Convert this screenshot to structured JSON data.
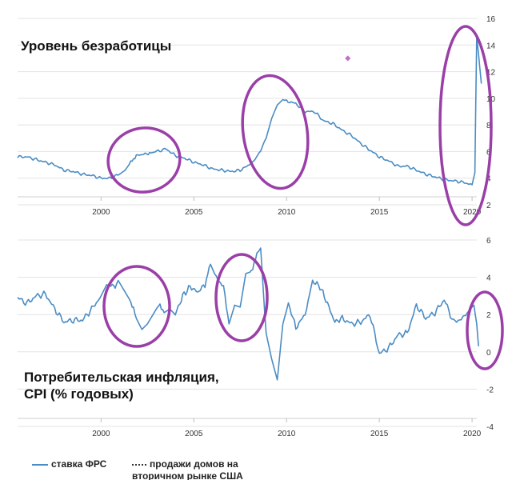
{
  "chart_data": [
    {
      "type": "line",
      "title": "Уровень безработицы",
      "xlabel": "",
      "ylabel": "",
      "xlim": [
        1995.5,
        2020.6
      ],
      "ylim": [
        2,
        16
      ],
      "yticks": [
        2,
        4,
        6,
        8,
        10,
        12,
        14,
        16
      ],
      "xticks": [
        2000,
        2005,
        2010,
        2015,
        2020
      ],
      "grid": "horizontal",
      "color": "#4a8cc4",
      "highlight_color": "#9b3fa8",
      "series": [
        {
          "x": [
            1995.5,
            1996.0,
            1996.5,
            1997.0,
            1997.5,
            1998.0,
            1998.5,
            1999.0,
            1999.5,
            2000.0,
            2000.5,
            2001.0,
            2001.3,
            2001.6,
            2001.9,
            2002.3,
            2002.7,
            2003.0,
            2003.5,
            2004.0,
            2004.5,
            2005.0,
            2005.5,
            2006.0,
            2006.5,
            2007.0,
            2007.5,
            2008.0,
            2008.3,
            2008.6,
            2008.9,
            2009.2,
            2009.5,
            2009.8,
            2010.0,
            2010.5,
            2011.0,
            2011.5,
            2012.0,
            2012.5,
            2013.0,
            2013.5,
            2014.0,
            2014.5,
            2015.0,
            2015.5,
            2016.0,
            2016.5,
            2017.0,
            2017.5,
            2018.0,
            2018.5,
            2019.0,
            2019.5,
            2020.0,
            2020.15,
            2020.25,
            2020.35,
            2020.5
          ],
          "y": [
            5.6,
            5.6,
            5.4,
            5.2,
            5.0,
            4.6,
            4.5,
            4.3,
            4.2,
            4.0,
            4.0,
            4.3,
            4.6,
            5.2,
            5.7,
            5.8,
            5.9,
            6.0,
            6.2,
            5.7,
            5.5,
            5.2,
            5.0,
            4.7,
            4.6,
            4.5,
            4.6,
            5.0,
            5.4,
            6.1,
            7.0,
            8.5,
            9.5,
            9.9,
            9.8,
            9.6,
            9.0,
            9.0,
            8.3,
            8.1,
            7.6,
            7.2,
            6.6,
            6.1,
            5.6,
            5.3,
            4.9,
            4.9,
            4.6,
            4.3,
            4.1,
            3.9,
            3.8,
            3.7,
            3.5,
            4.4,
            14.7,
            13.3,
            11.1
          ]
        }
      ],
      "marker": {
        "x": 2013.3,
        "y": 13.0
      }
    },
    {
      "type": "line",
      "title": "Потребительская инфляция, CPI (% годовых)",
      "xlabel": "",
      "ylabel": "",
      "xlim": [
        1995.5,
        2020.6
      ],
      "ylim": [
        -4,
        6
      ],
      "yticks": [
        -4,
        -2,
        0,
        2,
        4,
        6
      ],
      "xticks": [
        2000,
        2005,
        2010,
        2015,
        2020
      ],
      "grid": "horizontal",
      "color": "#4a8cc4",
      "highlight_color": "#9b3fa8",
      "series": [
        {
          "x": [
            1995.5,
            1996.0,
            1996.5,
            1997.0,
            1997.5,
            1998.0,
            1998.5,
            1999.0,
            1999.5,
            2000.0,
            2000.3,
            2000.6,
            2001.0,
            2001.3,
            2001.6,
            2001.9,
            2002.2,
            2002.5,
            2002.8,
            2003.1,
            2003.4,
            2003.7,
            2004.0,
            2004.4,
            2004.8,
            2005.2,
            2005.6,
            2005.9,
            2006.2,
            2006.6,
            2006.9,
            2007.2,
            2007.5,
            2007.8,
            2008.1,
            2008.4,
            2008.6,
            2008.9,
            2009.2,
            2009.5,
            2009.8,
            2010.1,
            2010.5,
            2011.0,
            2011.4,
            2011.8,
            2012.2,
            2012.6,
            2013.0,
            2013.5,
            2014.0,
            2014.5,
            2015.0,
            2015.5,
            2016.0,
            2016.5,
            2017.0,
            2017.5,
            2018.0,
            2018.5,
            2019.0,
            2019.5,
            2019.9,
            2020.1,
            2020.25,
            2020.35
          ],
          "y": [
            2.9,
            2.6,
            3.0,
            3.1,
            2.3,
            1.6,
            1.7,
            1.7,
            2.3,
            3.0,
            3.6,
            3.5,
            3.7,
            3.2,
            2.7,
            1.8,
            1.2,
            1.5,
            2.0,
            2.5,
            2.1,
            2.3,
            2.0,
            3.0,
            3.5,
            3.2,
            3.6,
            4.7,
            4.0,
            3.5,
            1.5,
            2.5,
            2.4,
            4.2,
            4.3,
            5.3,
            5.5,
            1.0,
            -0.4,
            -1.5,
            1.5,
            2.6,
            1.3,
            2.0,
            3.8,
            3.5,
            2.6,
            1.6,
            1.8,
            1.5,
            1.6,
            2.0,
            -0.1,
            0.2,
            0.9,
            1.0,
            2.5,
            1.8,
            2.1,
            2.8,
            1.6,
            1.8,
            2.3,
            2.5,
            1.5,
            0.3
          ]
        }
      ]
    }
  ],
  "titles": {
    "unemployment": "Уровень безработицы",
    "cpi_line1": "Потребительская инфляция,",
    "cpi_line2": "CPI (% годовых)"
  },
  "legend": {
    "item1": "ставка ФРС",
    "item2": "продажи домов на вторичном рынке США"
  }
}
